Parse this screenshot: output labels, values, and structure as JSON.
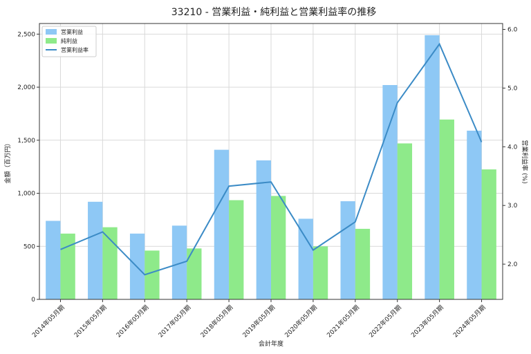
{
  "chart_data": {
    "type": "bar",
    "title": "33210 - 営業利益・純利益と営業利益率の推移",
    "xlabel": "会計年度",
    "ylabel": "金額（百万円）",
    "y2label": "営業利益率 (%)",
    "categories": [
      "2014年05月期",
      "2015年05月期",
      "2016年05月期",
      "2017年05月期",
      "2018年05月期",
      "2019年05月期",
      "2020年05月期",
      "2021年05月期",
      "2022年05月期",
      "2023年05月期",
      "2024年05月期"
    ],
    "series": [
      {
        "name": "営業利益",
        "kind": "bar",
        "axis": "left",
        "color": "#8ec8f5",
        "values": [
          740,
          920,
          620,
          695,
          1410,
          1310,
          760,
          925,
          2020,
          2490,
          1590
        ]
      },
      {
        "name": "純利益",
        "kind": "bar",
        "axis": "left",
        "color": "#8eea8a",
        "values": [
          620,
          680,
          460,
          480,
          935,
          975,
          500,
          665,
          1470,
          1695,
          1225
        ]
      },
      {
        "name": "営業利益率",
        "kind": "line",
        "axis": "right",
        "color": "#3b8bc6",
        "values": [
          2.25,
          2.55,
          1.82,
          2.05,
          3.33,
          3.4,
          2.24,
          2.72,
          4.75,
          5.75,
          4.08
        ]
      }
    ],
    "ylim": [
      0,
      2600
    ],
    "y_ticks": [
      0,
      500,
      1000,
      1500,
      2000,
      2500
    ],
    "y_tick_labels": [
      "0",
      "500",
      "1,000",
      "1,500",
      "2,000",
      "2,500"
    ],
    "y2lim": [
      1.4,
      6.1
    ],
    "y2_ticks": [
      2.0,
      3.0,
      4.0,
      5.0,
      6.0
    ],
    "y2_tick_labels": [
      "2.0",
      "3.0",
      "4.0",
      "5.0",
      "6.0"
    ],
    "grid": true,
    "legend": "top-left"
  }
}
